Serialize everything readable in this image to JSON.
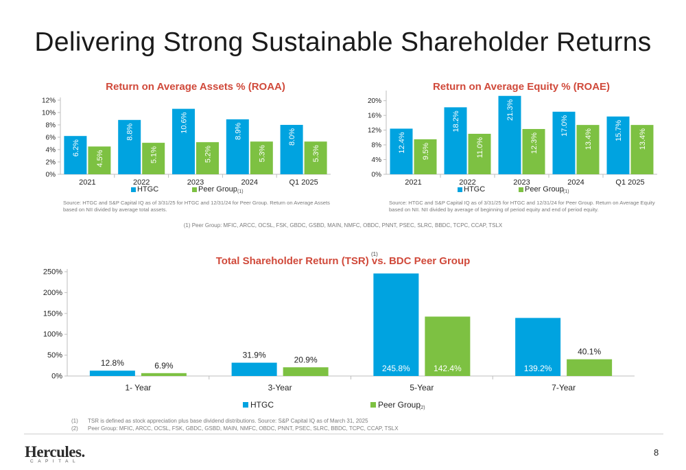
{
  "page": {
    "title": "Delivering Strong Sustainable Shareholder Returns",
    "page_number": "8",
    "logo_text": "Hercules.",
    "logo_subtext": "CAPITAL",
    "peer_group_note": "(1) Peer Group: MFIC, ARCC, OCSL, FSK, GBDC, GSBD, MAIN, NMFC, OBDC, PNNT, PSEC, SLRC, BBDC, TCPC, CCAP, TSLX",
    "footnotes": [
      {
        "num": "(1)",
        "text": "TSR is defined as stock appreciation plus base dividend distributions. Source: S&P Capital IQ as of March 31, 2025"
      },
      {
        "num": "(2)",
        "text": "Peer Group:  MFIC, ARCC, OCSL, FSK, GBDC, GSBD, MAIN, NMFC, OBDC, PNNT, PSEC, SLRC, BBDC, TCPC, CCAP, TSLX"
      }
    ]
  },
  "colors": {
    "htgc": "#00a3e0",
    "peer": "#7dc142",
    "title_red": "#d0493a"
  },
  "chart_data": [
    {
      "type": "bar",
      "title": "Return on Average Assets % (ROAA)",
      "categories": [
        "2021",
        "2022",
        "2023",
        "2024",
        "Q1 2025"
      ],
      "series": [
        {
          "name": "HTGC",
          "values": [
            6.2,
            8.8,
            10.6,
            8.9,
            8.0
          ],
          "labels": [
            "6.2%",
            "8.8%",
            "10.6%",
            "8.9%",
            "8.0%"
          ]
        },
        {
          "name": "Peer Group",
          "values": [
            4.5,
            5.1,
            5.2,
            5.3,
            5.3
          ],
          "labels": [
            "4.5%",
            "5.1%",
            "5.2%",
            "5.3%",
            "5.3%"
          ]
        }
      ],
      "legend_superscript": "(1)",
      "ylim": [
        0,
        12
      ],
      "yticks": [
        "0%",
        "2%",
        "4%",
        "6%",
        "8%",
        "10%",
        "12%"
      ],
      "source": "Source: HTGC and S&P Capital IQ as of 3/31/25 for HTGC and 12/31/24 for Peer Group.   Return on Average Assets based on NII divided by average total assets."
    },
    {
      "type": "bar",
      "title": "Return on Average Equity % (ROAE)",
      "categories": [
        "2021",
        "2022",
        "2023",
        "2024",
        "Q1 2025"
      ],
      "series": [
        {
          "name": "HTGC",
          "values": [
            12.4,
            18.2,
            21.3,
            17.0,
            15.7
          ],
          "labels": [
            "12.4%",
            "18.2%",
            "21.3%",
            "17.0%",
            "15.7%"
          ]
        },
        {
          "name": "Peer Group",
          "values": [
            9.5,
            11.0,
            12.3,
            13.4,
            13.4
          ],
          "labels": [
            "9.5%",
            "11.0%",
            "12.3%",
            "13.4%",
            "13.4%"
          ]
        }
      ],
      "legend_superscript": "(1)",
      "ylim": [
        0,
        22
      ],
      "yticks": [
        "0%",
        "4%",
        "8%",
        "12%",
        "16%",
        "20%"
      ],
      "source": "Source:  HTGC and S&P Capital IQ as of 3/31/25 for HTGC and 12/31/24 for Peer Group.  Return on Average Equity based on NII.  NII divided by average of beginning of period equity and end of period equity."
    },
    {
      "type": "bar",
      "title": "Total Shareholder Return (TSR) vs. BDC Peer Group",
      "title_superscript": "(1)",
      "categories": [
        "1- Year",
        "3-Year",
        "5-Year",
        "7-Year"
      ],
      "series": [
        {
          "name": "HTGC",
          "values": [
            12.8,
            31.9,
            245.8,
            139.2
          ],
          "labels": [
            "12.8%",
            "31.9%",
            "245.8%",
            "139.2%"
          ]
        },
        {
          "name": "Peer Group",
          "values": [
            6.9,
            20.9,
            142.4,
            40.1
          ],
          "labels": [
            "6.9%",
            "20.9%",
            "142.4%",
            "40.1%"
          ]
        }
      ],
      "legend_superscript": "(2)",
      "ylim": [
        0,
        250
      ],
      "yticks": [
        "0%",
        "50%",
        "100%",
        "150%",
        "200%",
        "250%"
      ]
    }
  ]
}
